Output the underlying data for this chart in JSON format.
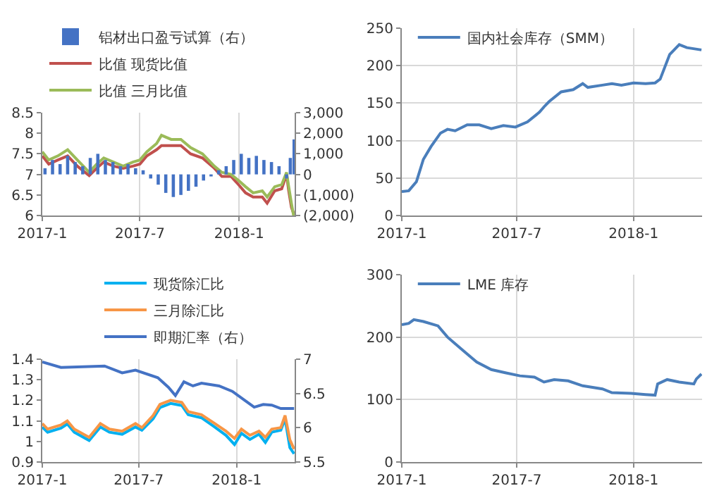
{
  "chart_data": [
    {
      "type": "line",
      "xlim": [
        "2017-01-01",
        "2018-04-14"
      ],
      "xticks": [
        {
          "value": "2017-01-01",
          "label": "2017-1"
        },
        {
          "value": "2017-07-01",
          "label": "2017-7"
        },
        {
          "value": "2018-01-01",
          "label": "2018-1"
        }
      ],
      "ylim": [
        6.0,
        8.5
      ],
      "yticks": [
        6.0,
        6.5,
        7.0,
        7.5,
        8.0,
        8.5
      ],
      "y2lim": [
        -2000,
        3000
      ],
      "y2ticks": [
        {
          "value": -2000,
          "label": "(2,000)"
        },
        {
          "value": -1000,
          "label": "(1,000)"
        },
        {
          "value": 0,
          "label": "0"
        },
        {
          "value": 1000,
          "label": "1,000"
        },
        {
          "value": 2000,
          "label": "2,000"
        },
        {
          "value": 3000,
          "label": "3,000"
        }
      ],
      "grid": "x",
      "legend": "top",
      "series": [
        {
          "name": "铝材出口盈亏试算（右）",
          "type": "bar",
          "axis": "y2",
          "color": "#4472c4",
          "x": [
            "2017-01-06",
            "2017-01-20",
            "2017-02-03",
            "2017-02-17",
            "2017-03-03",
            "2017-03-17",
            "2017-03-31",
            "2017-04-14",
            "2017-04-28",
            "2017-05-12",
            "2017-05-26",
            "2017-06-09",
            "2017-06-23",
            "2017-07-07",
            "2017-07-21",
            "2017-08-04",
            "2017-08-18",
            "2017-09-01",
            "2017-09-15",
            "2017-09-29",
            "2017-10-13",
            "2017-10-27",
            "2017-11-10",
            "2017-11-24",
            "2017-12-08",
            "2017-12-22",
            "2018-01-05",
            "2018-01-19",
            "2018-02-02",
            "2018-02-16",
            "2018-03-02",
            "2018-03-16",
            "2018-03-30",
            "2018-04-06",
            "2018-04-13"
          ],
          "values": [
            300,
            700,
            500,
            900,
            600,
            400,
            800,
            1000,
            700,
            600,
            400,
            500,
            300,
            200,
            -200,
            -500,
            -900,
            -1100,
            -1000,
            -800,
            -600,
            -300,
            -100,
            200,
            400,
            700,
            1000,
            800,
            900,
            700,
            600,
            400,
            -200,
            800,
            1700
          ]
        },
        {
          "name": "比值 现货比值",
          "color": "#c0504d",
          "x": [
            "2017-01-01",
            "2017-01-13",
            "2017-01-30",
            "2017-02-17",
            "2017-03-07",
            "2017-03-29",
            "2017-04-12",
            "2017-04-25",
            "2017-05-13",
            "2017-05-31",
            "2017-06-18",
            "2017-07-01",
            "2017-07-14",
            "2017-08-01",
            "2017-08-10",
            "2017-08-28",
            "2017-09-15",
            "2017-10-03",
            "2017-10-25",
            "2017-11-16",
            "2017-11-30",
            "2017-12-17",
            "2017-12-31",
            "2018-01-13",
            "2018-01-27",
            "2018-02-13",
            "2018-02-22",
            "2018-03-08",
            "2018-03-21",
            "2018-03-30",
            "2018-04-03",
            "2018-04-08",
            "2018-04-12"
          ],
          "values": [
            7.45,
            7.25,
            7.35,
            7.45,
            7.2,
            6.97,
            7.15,
            7.3,
            7.2,
            7.15,
            7.2,
            7.25,
            7.45,
            7.6,
            7.7,
            7.7,
            7.7,
            7.5,
            7.4,
            7.15,
            6.95,
            6.95,
            6.75,
            6.55,
            6.45,
            6.45,
            6.3,
            6.6,
            6.65,
            7.0,
            6.6,
            6.2,
            6.05
          ]
        },
        {
          "name": "比值 三月比值",
          "color": "#9bbb59",
          "x": [
            "2017-01-01",
            "2017-01-13",
            "2017-01-30",
            "2017-02-17",
            "2017-03-07",
            "2017-03-29",
            "2017-04-12",
            "2017-04-25",
            "2017-05-13",
            "2017-05-31",
            "2017-06-18",
            "2017-07-01",
            "2017-07-14",
            "2017-08-01",
            "2017-08-10",
            "2017-08-28",
            "2017-09-15",
            "2017-10-03",
            "2017-10-25",
            "2017-11-16",
            "2017-11-30",
            "2017-12-17",
            "2017-12-31",
            "2018-01-13",
            "2018-01-27",
            "2018-02-13",
            "2018-02-22",
            "2018-03-08",
            "2018-03-21",
            "2018-03-30",
            "2018-04-03",
            "2018-04-08",
            "2018-04-12"
          ],
          "values": [
            7.55,
            7.35,
            7.45,
            7.6,
            7.35,
            7.05,
            7.25,
            7.4,
            7.3,
            7.2,
            7.3,
            7.35,
            7.55,
            7.75,
            7.95,
            7.85,
            7.85,
            7.65,
            7.5,
            7.2,
            7.05,
            7.0,
            6.85,
            6.7,
            6.55,
            6.6,
            6.45,
            6.7,
            6.75,
            7.05,
            6.7,
            6.3,
            6.0
          ]
        }
      ]
    },
    {
      "type": "line",
      "xlim": [
        "2017-01-01",
        "2018-04-19"
      ],
      "xticks": [
        {
          "value": "2017-01-01",
          "label": "2017-1"
        },
        {
          "value": "2017-07-01",
          "label": "2017-7"
        },
        {
          "value": "2018-01-01",
          "label": "2018-1"
        }
      ],
      "ylim": [
        0,
        250
      ],
      "yticks": [
        0,
        50,
        100,
        150,
        200,
        250
      ],
      "grid": true,
      "legend": "top left",
      "series": [
        {
          "name": "国内社会库存（SMM）",
          "color": "#4a7ebb",
          "x": [
            "2017-01-01",
            "2017-01-12",
            "2017-01-24",
            "2017-02-04",
            "2017-02-16",
            "2017-03-03",
            "2017-03-14",
            "2017-03-26",
            "2017-04-14",
            "2017-05-03",
            "2017-05-22",
            "2017-06-10",
            "2017-06-29",
            "2017-07-18",
            "2017-08-06",
            "2017-08-13",
            "2017-08-21",
            "2017-09-09",
            "2017-09-28",
            "2017-10-13",
            "2017-10-21",
            "2017-11-13",
            "2017-11-28",
            "2017-12-13",
            "2018-01-01",
            "2018-01-20",
            "2018-02-04",
            "2018-02-12",
            "2018-02-27",
            "2018-03-14",
            "2018-03-26",
            "2018-04-18"
          ],
          "values": [
            32,
            33,
            45,
            75,
            92,
            110,
            115,
            113,
            121,
            121,
            116,
            120,
            118,
            125,
            138,
            145,
            152,
            165,
            168,
            176,
            171,
            174,
            176,
            174,
            177,
            176,
            177,
            182,
            215,
            228,
            224,
            221
          ]
        }
      ]
    },
    {
      "type": "line",
      "xlim": [
        "2017-01-01",
        "2018-04-20"
      ],
      "xticks": [
        {
          "value": "2017-01-01",
          "label": "2017-1"
        },
        {
          "value": "2017-07-01",
          "label": "2017-7"
        },
        {
          "value": "2018-01-01",
          "label": "2018-1"
        }
      ],
      "ylim": [
        0.9,
        1.4
      ],
      "yticks": [
        0.9,
        1.0,
        1.1,
        1.2,
        1.3,
        1.4
      ],
      "y2lim": [
        5.5,
        7.0
      ],
      "y2ticks": [
        5.5,
        6.0,
        6.5,
        7.0
      ],
      "grid": "x",
      "legend": "top right",
      "series": [
        {
          "name": "现货除汇比",
          "color": "#00b0f0",
          "x": [
            "2017-01-01",
            "2017-01-11",
            "2017-02-05",
            "2017-02-17",
            "2017-03-02",
            "2017-03-30",
            "2017-04-20",
            "2017-05-07",
            "2017-05-31",
            "2017-06-25",
            "2017-07-07",
            "2017-07-28",
            "2017-08-10",
            "2017-08-30",
            "2017-09-20",
            "2017-10-02",
            "2017-10-27",
            "2017-11-21",
            "2017-12-12",
            "2017-12-28",
            "2018-01-10",
            "2018-01-26",
            "2018-02-12",
            "2018-02-24",
            "2018-03-08",
            "2018-03-25",
            "2018-04-02",
            "2018-04-11",
            "2018-04-19"
          ],
          "values": [
            1.07,
            1.045,
            1.065,
            1.085,
            1.045,
            1.005,
            1.07,
            1.045,
            1.035,
            1.07,
            1.055,
            1.11,
            1.165,
            1.185,
            1.175,
            1.13,
            1.115,
            1.07,
            1.03,
            0.985,
            1.04,
            1.01,
            1.035,
            0.995,
            1.045,
            1.055,
            1.11,
            0.97,
            0.94
          ]
        },
        {
          "name": "三月除汇比",
          "color": "#f79646",
          "x": [
            "2017-01-01",
            "2017-01-11",
            "2017-02-05",
            "2017-02-17",
            "2017-03-02",
            "2017-03-30",
            "2017-04-20",
            "2017-05-07",
            "2017-05-31",
            "2017-06-25",
            "2017-07-07",
            "2017-07-28",
            "2017-08-10",
            "2017-08-30",
            "2017-09-20",
            "2017-10-02",
            "2017-10-27",
            "2017-11-21",
            "2017-12-12",
            "2017-12-28",
            "2018-01-10",
            "2018-01-26",
            "2018-02-12",
            "2018-02-24",
            "2018-03-08",
            "2018-03-25",
            "2018-04-02",
            "2018-04-11",
            "2018-04-19"
          ],
          "values": [
            1.087,
            1.06,
            1.08,
            1.1,
            1.06,
            1.02,
            1.087,
            1.06,
            1.05,
            1.087,
            1.067,
            1.126,
            1.18,
            1.2,
            1.19,
            1.145,
            1.13,
            1.087,
            1.05,
            1.015,
            1.06,
            1.03,
            1.05,
            1.02,
            1.06,
            1.067,
            1.126,
            1.008,
            0.963
          ]
        },
        {
          "name": "即期汇率（右）",
          "color": "#4472c4",
          "axis": "y2",
          "x": [
            "2017-01-01",
            "2017-02-05",
            "2017-04-28",
            "2017-05-31",
            "2017-06-25",
            "2017-08-06",
            "2017-08-26",
            "2017-09-08",
            "2017-09-24",
            "2017-10-11",
            "2017-10-27",
            "2017-11-29",
            "2017-12-24",
            "2018-01-18",
            "2018-02-03",
            "2018-02-20",
            "2018-03-08",
            "2018-03-25",
            "2018-04-19"
          ],
          "values": [
            6.96,
            6.88,
            6.9,
            6.8,
            6.84,
            6.73,
            6.59,
            6.47,
            6.67,
            6.61,
            6.65,
            6.61,
            6.53,
            6.39,
            6.3,
            6.34,
            6.33,
            6.28,
            6.28
          ]
        }
      ]
    },
    {
      "type": "line",
      "xlim": [
        "2017-01-01",
        "2018-04-19"
      ],
      "xticks": [
        {
          "value": "2017-01-01",
          "label": "2017-1"
        },
        {
          "value": "2017-07-01",
          "label": "2017-7"
        },
        {
          "value": "2018-01-01",
          "label": "2018-1"
        }
      ],
      "ylim": [
        0,
        300
      ],
      "yticks": [
        0,
        100,
        200,
        300
      ],
      "grid": true,
      "legend": "top left",
      "series": [
        {
          "name": "LME 库存",
          "color": "#4a7ebb",
          "x": [
            "2017-01-01",
            "2017-01-12",
            "2017-01-20",
            "2017-02-04",
            "2017-02-27",
            "2017-03-14",
            "2017-04-06",
            "2017-04-29",
            "2017-05-22",
            "2017-06-13",
            "2017-07-06",
            "2017-07-29",
            "2017-08-13",
            "2017-08-29",
            "2017-09-20",
            "2017-10-13",
            "2017-11-13",
            "2017-11-28",
            "2017-12-28",
            "2018-01-20",
            "2018-02-04",
            "2018-02-08",
            "2018-02-23",
            "2018-03-14",
            "2018-04-06",
            "2018-04-10",
            "2018-04-18"
          ],
          "values": [
            220,
            222,
            228,
            225,
            218,
            200,
            180,
            160,
            148,
            143,
            138,
            136,
            128,
            132,
            130,
            122,
            117,
            111,
            110,
            108,
            107,
            125,
            132,
            128,
            125,
            133,
            141
          ]
        }
      ]
    }
  ]
}
